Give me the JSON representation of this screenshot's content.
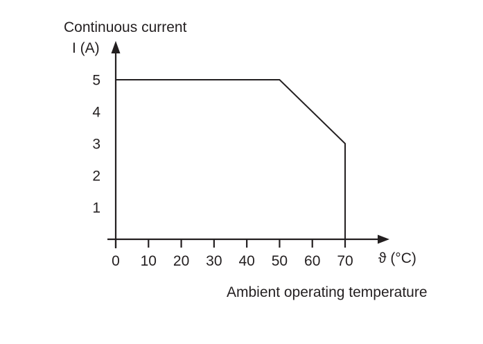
{
  "chart_data": {
    "type": "line",
    "title": "Continuous current",
    "ylabel": "I (A)",
    "xlabel": "ϑ (°C)",
    "x_axis_caption": "Ambient operating temperature",
    "x_ticks": [
      0,
      10,
      20,
      30,
      40,
      50,
      60,
      70
    ],
    "y_ticks": [
      5,
      4,
      3,
      2,
      1
    ],
    "xlim": [
      0,
      83
    ],
    "ylim": [
      0,
      6.1
    ],
    "grid": false,
    "legend": "none",
    "line_color": "#231f20",
    "background_color": "#ffffff",
    "series": [
      {
        "name": "Continuous current vs ambient operating temperature",
        "points": [
          [
            0,
            5
          ],
          [
            50,
            5
          ],
          [
            70,
            3
          ],
          [
            70,
            0
          ]
        ]
      }
    ]
  }
}
